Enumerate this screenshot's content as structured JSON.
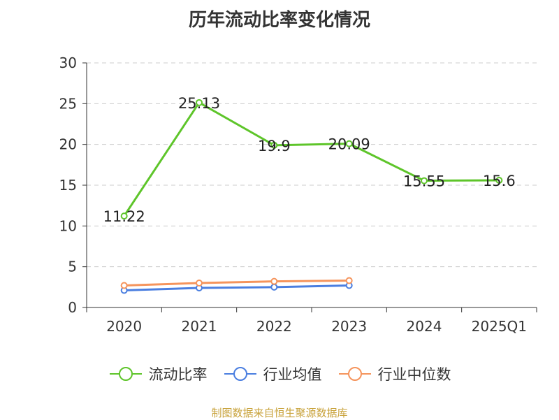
{
  "title": "历年流动比率变化情况",
  "source": "制图数据来自恒生聚源数据库",
  "colors": {
    "source_text": "#c8a23a",
    "axis": "#333333",
    "grid": "#cccccc"
  },
  "chart_data": {
    "type": "line",
    "title": "历年流动比率变化情况",
    "categories": [
      "2020",
      "2021",
      "2022",
      "2023",
      "2024",
      "2025Q1"
    ],
    "ylim": [
      0,
      30
    ],
    "yticks": [
      0,
      5,
      10,
      15,
      20,
      25,
      30
    ],
    "grid": true,
    "legend_position": "bottom",
    "series": [
      {
        "name": "流动比率",
        "color": "#5ec52a",
        "values": [
          11.22,
          25.13,
          19.9,
          20.09,
          15.55,
          15.6
        ],
        "labels": [
          "11.22",
          "25.13",
          "19.9",
          "20.09",
          "15.55",
          "15.6"
        ],
        "show_labels": true
      },
      {
        "name": "行业均值",
        "color": "#4a7ee0",
        "values": [
          2.1,
          2.4,
          2.5,
          2.7,
          null,
          null
        ],
        "show_labels": false
      },
      {
        "name": "行业中位数",
        "color": "#f5945c",
        "values": [
          2.7,
          3.0,
          3.2,
          3.3,
          null,
          null
        ],
        "show_labels": false
      }
    ]
  }
}
